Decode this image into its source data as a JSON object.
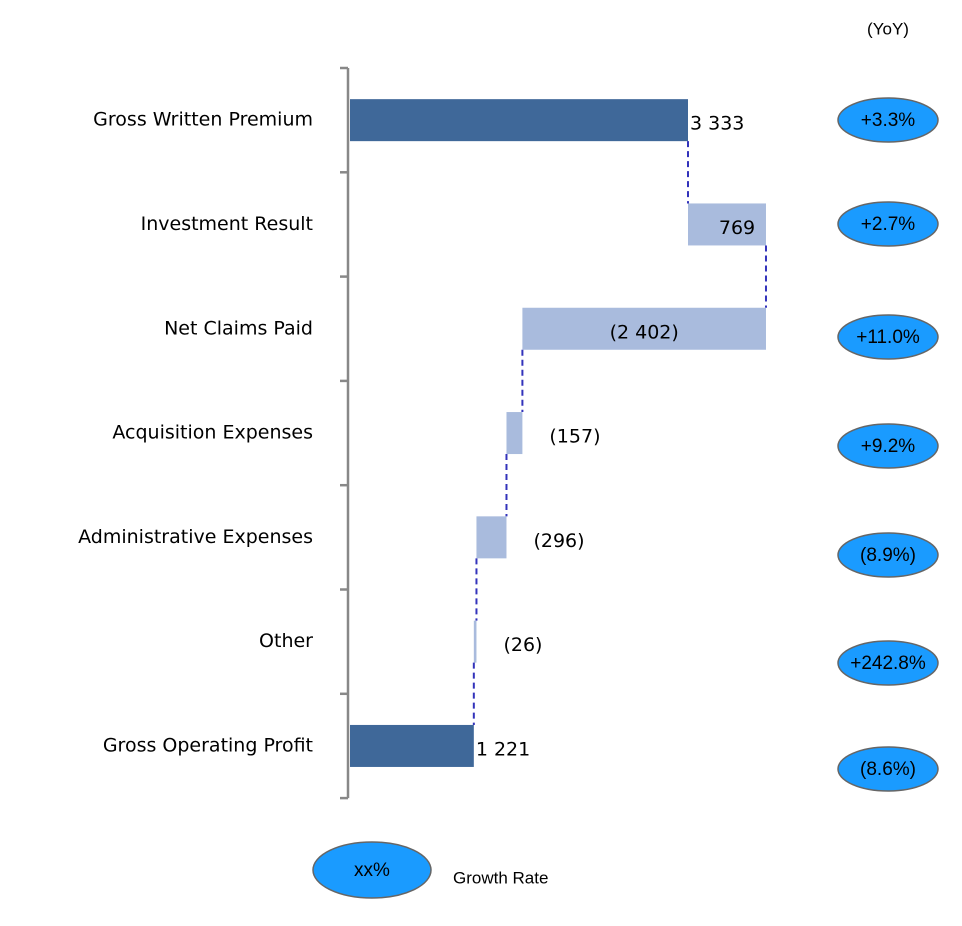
{
  "chart_data": {
    "type": "waterfall",
    "header": "(YoY)",
    "categories": [
      "Gross Written Premium",
      "Investment Result",
      "Net Claims Paid",
      "Acquisition Expenses",
      "Administrative Expenses",
      "Other",
      "Gross Operating Profit"
    ],
    "values": [
      3333,
      769,
      -2402,
      -157,
      -296,
      -26,
      1221
    ],
    "value_labels": [
      "3 333",
      "769",
      "(2 402)",
      "(157)",
      "(296)",
      "(26)",
      "1 221"
    ],
    "total_color": "#3f6899",
    "step_color": "#a9bbdd",
    "connector_color": "#3333bb",
    "growth_labels": [
      "+3.3%",
      "+2.7%",
      "+11.0%",
      "+9.2%",
      "(8.9%)",
      "+242.8%",
      "(8.6%)"
    ],
    "growth_color": "#1a9bff",
    "legend": {
      "symbol": "xx%",
      "label": "Growth Rate"
    }
  }
}
